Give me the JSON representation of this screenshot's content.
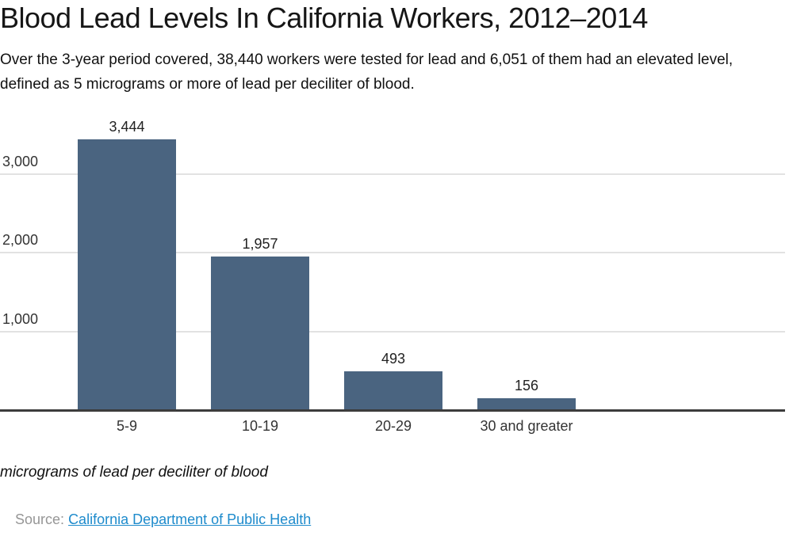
{
  "header": {
    "title": "Blood Lead Levels In California Workers, 2012–2014",
    "subtitle_line1": "Over the 3-year period covered, 38,440 workers were tested for lead and 6,051 of them had an elevated level,",
    "subtitle_line2": "defined as 5 micrograms or more of lead per deciliter of blood."
  },
  "chart_data": {
    "type": "bar",
    "title": "Blood Lead Levels In California Workers, 2012–2014",
    "categories": [
      "5-9",
      "10-19",
      "20-29",
      "30 and greater"
    ],
    "values": [
      3444,
      1957,
      493,
      156
    ],
    "value_labels": [
      "3,444",
      "1,957",
      "493",
      "156"
    ],
    "y_ticks": [
      {
        "value": 1000,
        "label": "1,000"
      },
      {
        "value": 2000,
        "label": "2,000"
      },
      {
        "value": 3000,
        "label": "3,000"
      }
    ],
    "ylim": [
      0,
      3500
    ],
    "xlabel": "micrograms of lead per deciliter of blood",
    "ylabel": "",
    "grid": true,
    "legend_position": "none"
  },
  "footer": {
    "unit_note": "micrograms of lead per deciliter of blood",
    "source_label": "Source:",
    "source_link": "California Department of Public Health"
  },
  "colors": {
    "bar": "#4a6480",
    "grid": "#e2e2e2",
    "axis": "#3c3c3c",
    "tick_text": "#333333",
    "value_text": "#222222",
    "link": "#1e8bcc",
    "source_gray": "#969696"
  }
}
